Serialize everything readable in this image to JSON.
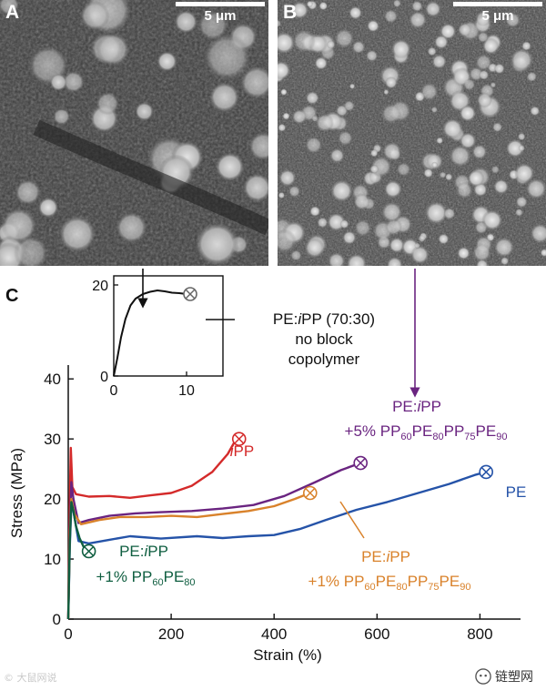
{
  "panels": {
    "a": {
      "letter": "A",
      "scale_label": "5 μm"
    },
    "b": {
      "letter": "B",
      "scale_label": "5 μm"
    },
    "c": {
      "letter": "C"
    }
  },
  "watermark": "© 大鼠网说",
  "brand": {
    "name": "链塑网"
  },
  "colors": {
    "iPP": "#d42a2a",
    "PE": "#2553a8",
    "PE_iPP_5pct": "#6a2480",
    "PE_iPP_1pct_tetra": "#d9822b",
    "PE_iPP_1pct_di": "#0f5e40",
    "no_block": "#111111"
  },
  "chart_data": [
    {
      "type": "line",
      "id": "main",
      "xlabel": "Strain (%)",
      "ylabel": "Stress (MPa)",
      "xlim": [
        0,
        870
      ],
      "ylim": [
        0,
        42
      ],
      "xticks": [
        0,
        200,
        400,
        600,
        800
      ],
      "yticks": [
        0,
        10,
        20,
        30,
        40
      ],
      "series": [
        {
          "key": "PE",
          "label": "PE",
          "color": "#2553a8",
          "points": [
            [
              0,
              0
            ],
            [
              3,
              12
            ],
            [
              6,
              19
            ],
            [
              10,
              18
            ],
            [
              20,
              13
            ],
            [
              40,
              12.6
            ],
            [
              80,
              13.2
            ],
            [
              120,
              13.8
            ],
            [
              180,
              13.4
            ],
            [
              250,
              13.8
            ],
            [
              300,
              13.5
            ],
            [
              350,
              13.8
            ],
            [
              400,
              14.0
            ],
            [
              450,
              15.0
            ],
            [
              500,
              16.5
            ],
            [
              560,
              18.2
            ],
            [
              620,
              19.5
            ],
            [
              680,
              21.0
            ],
            [
              740,
              22.5
            ],
            [
              790,
              24.0
            ],
            [
              812,
              24.5
            ]
          ],
          "break_point": [
            812,
            24.5
          ]
        },
        {
          "key": "iPP",
          "label": "iPP",
          "color": "#d42a2a",
          "points": [
            [
              0,
              0
            ],
            [
              3,
              20
            ],
            [
              5,
              28.5
            ],
            [
              8,
              22
            ],
            [
              15,
              20.8
            ],
            [
              40,
              20.4
            ],
            [
              80,
              20.5
            ],
            [
              120,
              20.2
            ],
            [
              160,
              20.6
            ],
            [
              200,
              21.0
            ],
            [
              240,
              22.2
            ],
            [
              280,
              24.5
            ],
            [
              310,
              27.5
            ],
            [
              325,
              29.8
            ],
            [
              332,
              30.0
            ]
          ],
          "break_point": [
            332,
            30.0
          ]
        },
        {
          "key": "PE_iPP_5pct",
          "label": "PE:iPP",
          "color": "#6a2480",
          "points": [
            [
              0,
              0
            ],
            [
              3,
              15
            ],
            [
              6,
              22.8
            ],
            [
              10,
              20
            ],
            [
              20,
              16
            ],
            [
              40,
              16.5
            ],
            [
              80,
              17.2
            ],
            [
              130,
              17.6
            ],
            [
              180,
              17.8
            ],
            [
              240,
              18.0
            ],
            [
              300,
              18.4
            ],
            [
              360,
              19.0
            ],
            [
              420,
              20.5
            ],
            [
              480,
              22.8
            ],
            [
              530,
              24.8
            ],
            [
              568,
              26.0
            ]
          ],
          "break_point": [
            568,
            26.0
          ]
        },
        {
          "key": "PE_iPP_1pct_tetra",
          "label": "PE:iPP",
          "color": "#d9822b",
          "points": [
            [
              0,
              0
            ],
            [
              3,
              14
            ],
            [
              6,
              20
            ],
            [
              12,
              17.5
            ],
            [
              25,
              15.8
            ],
            [
              60,
              16.5
            ],
            [
              100,
              17.0
            ],
            [
              150,
              17.0
            ],
            [
              200,
              17.2
            ],
            [
              250,
              17.0
            ],
            [
              300,
              17.5
            ],
            [
              350,
              18.0
            ],
            [
              400,
              18.8
            ],
            [
              440,
              20.0
            ],
            [
              470,
              21.0
            ]
          ],
          "break_point": [
            470,
            21.0
          ]
        },
        {
          "key": "PE_iPP_1pct_di",
          "label": "PE:iPP",
          "color": "#0f5e40",
          "points": [
            [
              0,
              0
            ],
            [
              3,
              13
            ],
            [
              6,
              19.5
            ],
            [
              10,
              18
            ],
            [
              15,
              15.5
            ],
            [
              22,
              13.5
            ],
            [
              30,
              12
            ],
            [
              40,
              11.3
            ]
          ],
          "break_point": [
            40,
            11.3
          ]
        }
      ],
      "annotations": [
        {
          "series": "iPP",
          "parts": [
            [
              "i",
              "i"
            ],
            [
              "iPP_rest",
              "PP"
            ]
          ]
        },
        {
          "series": "PE",
          "text": "PE"
        },
        {
          "series": "PE_iPP_5pct",
          "line1": "PE:iPP",
          "line2": "+5% PP60PE80PP75PE90"
        },
        {
          "series": "PE_iPP_1pct_tetra",
          "line1": "PE:iPP",
          "line2": "+1% PP60PE80PP75PE90"
        },
        {
          "series": "PE_iPP_1pct_di",
          "line1": "PE:iPP",
          "line2": "+1% PP60PE80"
        }
      ]
    },
    {
      "type": "line",
      "id": "inset",
      "xlim": [
        0,
        15
      ],
      "ylim": [
        0,
        22
      ],
      "xticks": [
        0,
        10
      ],
      "yticks": [
        0,
        20
      ],
      "series": [
        {
          "key": "no_block",
          "label": "PE:iPP (70:30)",
          "color": "#111111",
          "points": [
            [
              0,
              0
            ],
            [
              0.5,
              4
            ],
            [
              1,
              8.5
            ],
            [
              1.6,
              12.5
            ],
            [
              2.3,
              15.5
            ],
            [
              3,
              17
            ],
            [
              4,
              18
            ],
            [
              5,
              18.5
            ],
            [
              6,
              18.8
            ],
            [
              7,
              18.6
            ],
            [
              8,
              18.3
            ],
            [
              9,
              18.2
            ],
            [
              10,
              18
            ],
            [
              10.5,
              18
            ]
          ],
          "break_point": [
            10.5,
            18
          ]
        }
      ],
      "annotation": {
        "line1": "PE:iPP (70:30)",
        "line2": "no block",
        "line3": "copolymer"
      }
    }
  ],
  "text": {
    "pe_ipp_prefix": "PE:",
    "pe_ipp_i": "i",
    "pe_ipp_pp": "PP",
    "ipp_i": "i",
    "ipp_pp": "PP",
    "pe": "PE",
    "five_pct_prefix": "+5% PP",
    "one_pct_prefix": "+1% PP",
    "sub_60": "60",
    "sub_80": "80",
    "sub_75": "75",
    "sub_90": "90",
    "pe_mid": "PE",
    "pp_mid": "PP",
    "no_block_name_pre": "PE:",
    "no_block_name_i": "i",
    "no_block_name_post": "PP (70:30)",
    "no_block_line2": "no block",
    "no_block_line3": "copolymer"
  }
}
